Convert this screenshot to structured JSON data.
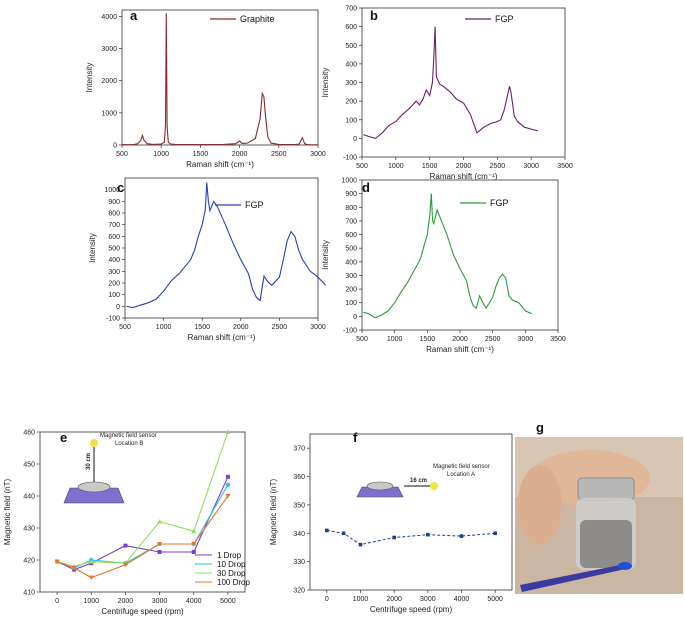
{
  "panel_letters": {
    "a": "a",
    "b": "b",
    "c": "c",
    "d": "d",
    "e": "e",
    "f": "f",
    "g": "g"
  },
  "colors": {
    "a": "#8b2a2a",
    "b": "#6a1f6e",
    "c": "#2b3fbf",
    "d": "#2e9a3a",
    "e1": "#7a3fd0",
    "e10": "#2ec6d8",
    "e30": "#8ee05a",
    "e100": "#e8742a",
    "f": "#1f3f8f"
  },
  "chart_data": [
    {
      "panel": "a",
      "type": "line",
      "title": "",
      "legend": [
        "Graphite"
      ],
      "xlabel": "Raman shift (cm⁻¹)",
      "ylabel": "Intensity",
      "xlim": [
        500,
        3000
      ],
      "ylim": [
        0,
        4200
      ],
      "xticks": [
        500,
        1000,
        1500,
        2000,
        2500,
        3000
      ],
      "yticks": [
        0,
        1000,
        2000,
        3000,
        4000
      ],
      "series": [
        {
          "name": "Graphite",
          "x": [
            500,
            650,
            700,
            740,
            760,
            780,
            820,
            900,
            1000,
            1040,
            1055,
            1065,
            1075,
            1090,
            1120,
            1200,
            1400,
            1600,
            1800,
            1950,
            2000,
            2030,
            2100,
            2200,
            2260,
            2290,
            2310,
            2330,
            2360,
            2400,
            2500,
            2600,
            2700,
            2760,
            2800,
            2830,
            2860,
            2900,
            3000
          ],
          "y": [
            10,
            15,
            40,
            150,
            300,
            150,
            40,
            20,
            30,
            80,
            600,
            4100,
            600,
            80,
            30,
            15,
            15,
            15,
            20,
            40,
            120,
            50,
            60,
            200,
            800,
            1600,
            1500,
            900,
            250,
            60,
            20,
            15,
            15,
            30,
            230,
            40,
            15,
            10,
            5
          ]
        }
      ]
    },
    {
      "panel": "b",
      "type": "line",
      "title": "",
      "legend": [
        "FGP"
      ],
      "xlabel": "Raman shift (cm⁻¹)",
      "ylabel": "Intensity",
      "xlim": [
        500,
        3500
      ],
      "ylim": [
        -100,
        700
      ],
      "xticks": [
        500,
        1000,
        1500,
        2000,
        2500,
        3000,
        3500
      ],
      "yticks": [
        -100,
        0,
        100,
        200,
        300,
        400,
        500,
        600,
        700
      ],
      "series": [
        {
          "name": "FGP",
          "x": [
            520,
            600,
            700,
            800,
            900,
            1000,
            1100,
            1200,
            1300,
            1350,
            1400,
            1450,
            1500,
            1540,
            1560,
            1580,
            1600,
            1650,
            1700,
            1800,
            1900,
            2000,
            2100,
            2150,
            2200,
            2300,
            2400,
            2500,
            2550,
            2600,
            2650,
            2680,
            2700,
            2750,
            2800,
            2900,
            3000,
            3100
          ],
          "y": [
            20,
            10,
            0,
            30,
            70,
            90,
            130,
            160,
            200,
            180,
            210,
            260,
            230,
            300,
            420,
            600,
            330,
            290,
            280,
            250,
            210,
            190,
            130,
            80,
            30,
            60,
            80,
            90,
            100,
            150,
            230,
            280,
            250,
            120,
            90,
            60,
            50,
            40
          ]
        }
      ]
    },
    {
      "panel": "c",
      "type": "line",
      "title": "",
      "legend": [
        "FGP"
      ],
      "xlabel": "Raman shift (cm⁻¹)",
      "ylabel": "Intensity",
      "xlim": [
        500,
        3000
      ],
      "ylim": [
        -100,
        1100
      ],
      "xticks": [
        500,
        1000,
        1500,
        2000,
        2500,
        3000
      ],
      "yticks": [
        -100,
        0,
        100,
        200,
        300,
        400,
        500,
        600,
        700,
        800,
        900,
        1000
      ],
      "series": [
        {
          "name": "FGP",
          "x": [
            520,
            600,
            700,
            800,
            900,
            1000,
            1100,
            1200,
            1300,
            1350,
            1400,
            1450,
            1500,
            1540,
            1560,
            1580,
            1600,
            1650,
            1700,
            1800,
            1900,
            2000,
            2100,
            2150,
            2200,
            2250,
            2300,
            2350,
            2400,
            2500,
            2550,
            2600,
            2650,
            2700,
            2750,
            2800,
            2900,
            3000,
            3100
          ],
          "y": [
            0,
            -10,
            10,
            30,
            60,
            130,
            220,
            280,
            360,
            400,
            480,
            600,
            700,
            830,
            1060,
            900,
            820,
            900,
            850,
            700,
            540,
            400,
            280,
            150,
            80,
            50,
            260,
            210,
            180,
            250,
            400,
            560,
            640,
            600,
            480,
            400,
            300,
            250,
            180
          ]
        }
      ]
    },
    {
      "panel": "d",
      "type": "line",
      "title": "",
      "legend": [
        "FGP"
      ],
      "xlabel": "Raman shift (cm⁻¹)",
      "ylabel": "Intensity",
      "xlim": [
        500,
        3500
      ],
      "ylim": [
        -100,
        1000
      ],
      "xticks": [
        500,
        1000,
        1500,
        2000,
        2500,
        3000,
        3500
      ],
      "yticks": [
        -100,
        0,
        100,
        200,
        300,
        400,
        500,
        600,
        700,
        800,
        900,
        1000
      ],
      "series": [
        {
          "name": "FGP",
          "x": [
            520,
            600,
            700,
            800,
            900,
            1000,
            1100,
            1200,
            1300,
            1350,
            1400,
            1450,
            1500,
            1540,
            1560,
            1580,
            1600,
            1650,
            1700,
            1800,
            1900,
            2000,
            2100,
            2150,
            2200,
            2250,
            2300,
            2350,
            2400,
            2500,
            2550,
            2600,
            2650,
            2700,
            2750,
            2800,
            2900,
            3000,
            3100
          ],
          "y": [
            30,
            20,
            -10,
            10,
            40,
            100,
            180,
            250,
            340,
            380,
            430,
            520,
            600,
            750,
            900,
            700,
            680,
            780,
            720,
            600,
            450,
            350,
            260,
            150,
            80,
            60,
            150,
            100,
            60,
            140,
            220,
            280,
            310,
            280,
            150,
            120,
            100,
            40,
            20
          ]
        }
      ]
    },
    {
      "panel": "e",
      "type": "line",
      "title": "",
      "xlabel": "Centrifuge speed (rpm)",
      "ylabel": "Magnetic field (nT)",
      "xlim": [
        -500,
        5500
      ],
      "ylim": [
        410,
        460
      ],
      "xticks": [
        0,
        1000,
        2000,
        3000,
        4000,
        5000
      ],
      "yticks": [
        410,
        420,
        430,
        440,
        450,
        460
      ],
      "x": [
        0,
        500,
        1000,
        2000,
        3000,
        4000,
        5000
      ],
      "series": [
        {
          "name": "1   Drop",
          "values": [
            419.5,
            417,
            419,
            424.5,
            422.5,
            422.5,
            446
          ]
        },
        {
          "name": "10  Drop",
          "values": [
            419.5,
            417.5,
            420,
            419,
            425,
            425,
            443.5
          ]
        },
        {
          "name": "30  Drop",
          "values": [
            419.5,
            418,
            419.5,
            419,
            432,
            429,
            460
          ]
        },
        {
          "name": "100 Drop",
          "values": [
            419.5,
            417.5,
            414.5,
            418.5,
            425,
            425,
            440
          ]
        }
      ],
      "legend_position": "bottom-right",
      "annotations": [
        "Magnetic field sensor",
        "Location B",
        "30 cm"
      ]
    },
    {
      "panel": "f",
      "type": "line",
      "title": "",
      "xlabel": "Centrifuge speed (rpm)",
      "ylabel": "Magnetic field (nT)",
      "xlim": [
        -500,
        5500
      ],
      "ylim": [
        320,
        375
      ],
      "xticks": [
        0,
        1000,
        2000,
        3000,
        4000,
        5000
      ],
      "yticks": [
        320,
        330,
        340,
        350,
        360,
        370
      ],
      "x": [
        0,
        500,
        1000,
        2000,
        3000,
        4000,
        5000
      ],
      "series": [
        {
          "name": "",
          "values": [
            341,
            340,
            336,
            338.5,
            339.5,
            339,
            340
          ]
        }
      ],
      "annotations": [
        "Magnetic field sensor",
        "Location A",
        "16 cm"
      ]
    }
  ]
}
